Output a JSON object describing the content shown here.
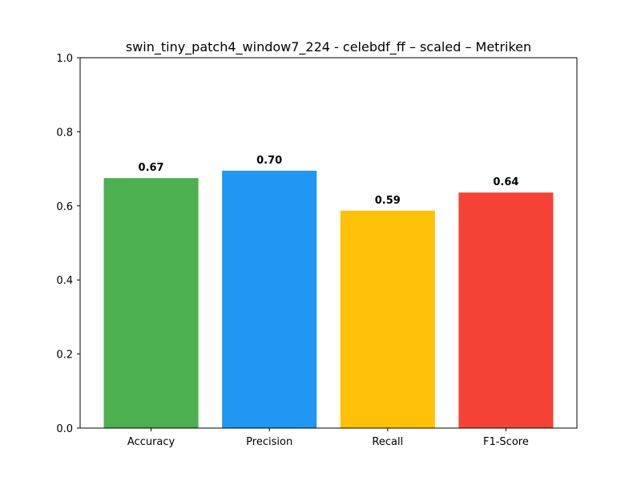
{
  "chart_data": {
    "type": "bar",
    "title": "swin_tiny_patch4_window7_224 - celebdf_ff – scaled – Metriken",
    "xlabel": "",
    "ylabel": "",
    "categories": [
      "Accuracy",
      "Precision",
      "Recall",
      "F1-Score"
    ],
    "values": [
      0.675,
      0.695,
      0.587,
      0.636
    ],
    "value_labels": [
      "0.67",
      "0.70",
      "0.59",
      "0.64"
    ],
    "colors": [
      "#4caf50",
      "#2196f3",
      "#ffc107",
      "#f44336"
    ],
    "ylim": [
      0,
      1.0
    ],
    "yticks": [
      0.0,
      0.2,
      0.4,
      0.6,
      0.8,
      1.0
    ],
    "ytick_labels": [
      "0.0",
      "0.2",
      "0.4",
      "0.6",
      "0.8",
      "1.0"
    ],
    "grid": false,
    "legend": "none"
  }
}
